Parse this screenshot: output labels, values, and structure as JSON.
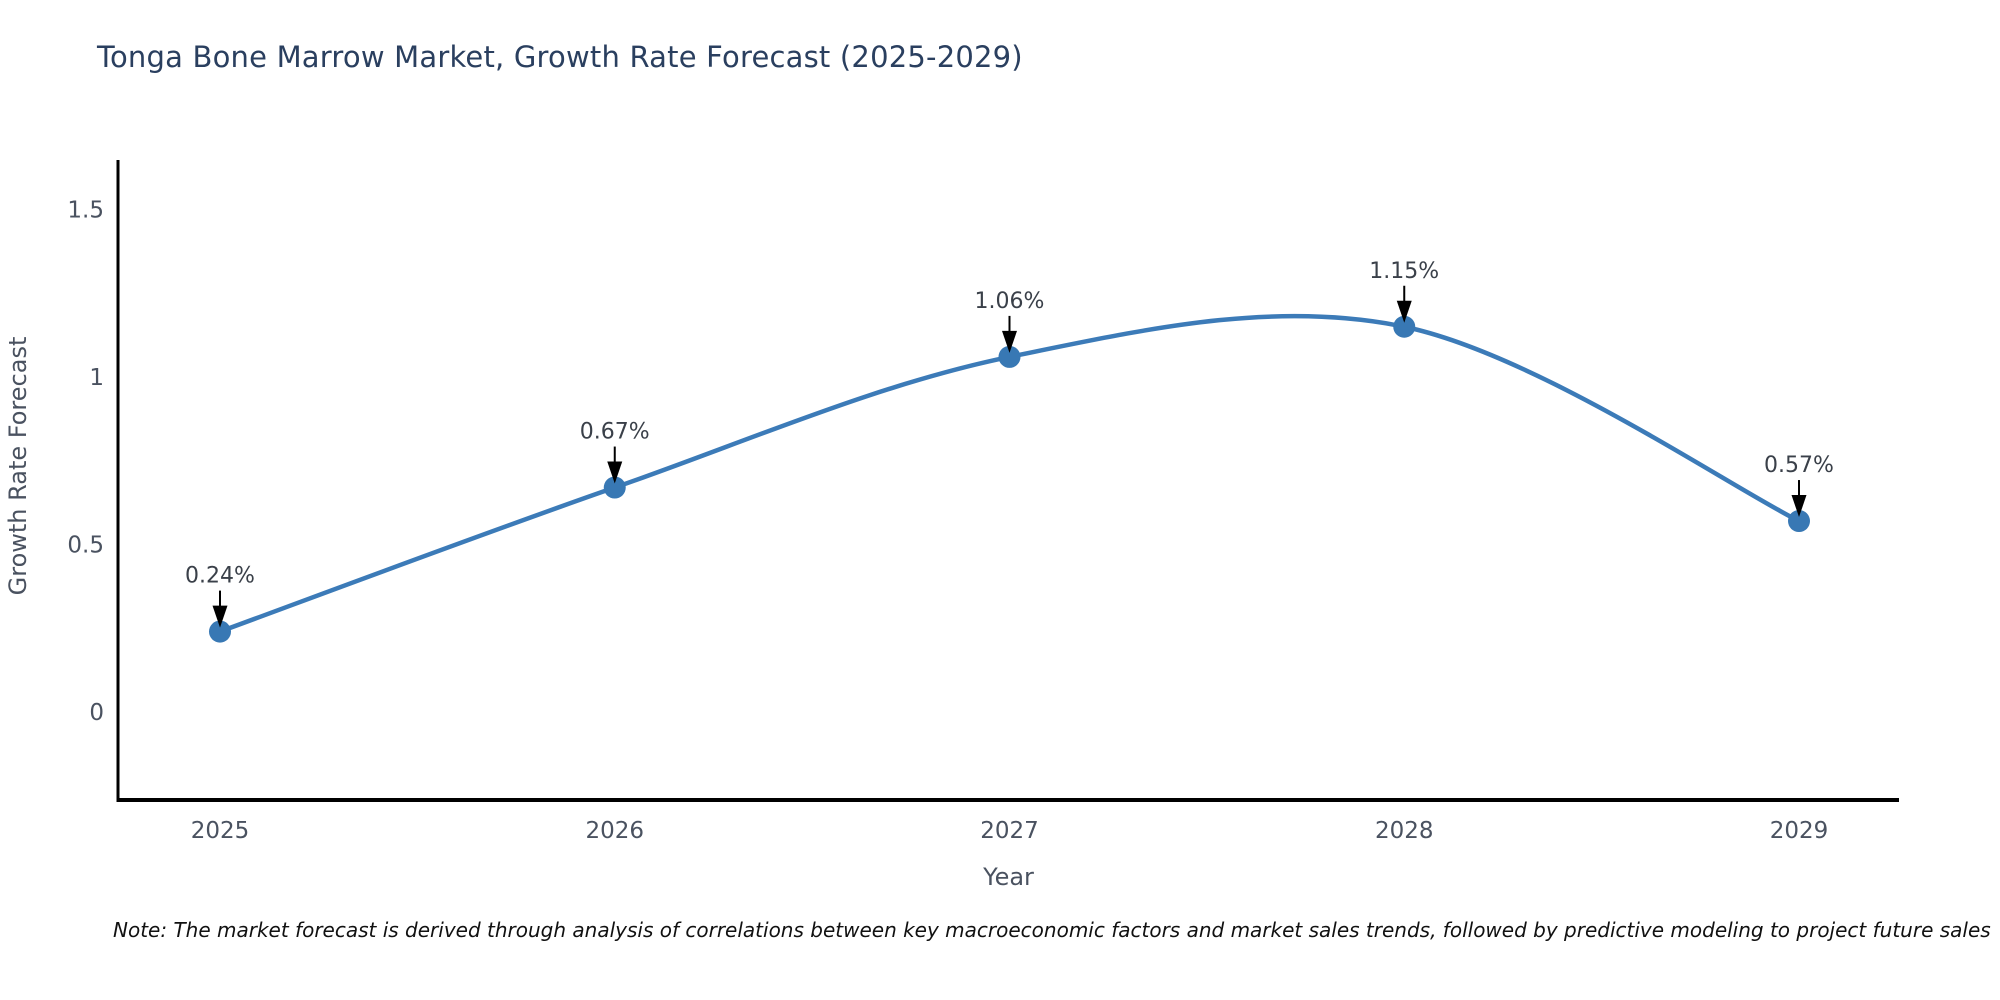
{
  "title": "Tonga Bone Marrow Market, Growth Rate Forecast (2025-2029)",
  "note": "Note: The market forecast is derived through analysis of correlations between key macroeconomic factors and market sales trends, followed by predictive modeling to project future sales",
  "chart_data": {
    "type": "line",
    "title": "Tonga Bone Marrow Market, Growth Rate Forecast (2025-2029)",
    "xlabel": "Year",
    "ylabel": "Growth Rate Forecast",
    "x": [
      2025,
      2026,
      2027,
      2028,
      2029
    ],
    "values": [
      0.24,
      0.67,
      1.06,
      1.15,
      0.57
    ],
    "point_labels": [
      "0.24%",
      "0.67%",
      "1.06%",
      "1.15%",
      "0.57%"
    ],
    "series_name": "Growth Rate Forecast",
    "line_shape": "spline",
    "yticks": [
      0,
      0.5,
      1,
      1.5
    ],
    "ylim": [
      -0.26,
      1.65
    ],
    "grid": false,
    "legend": "none",
    "colors": {
      "line": "#3c7bb8",
      "marker": "#3878b4",
      "axis": "#000000",
      "title": "#2a3f5f",
      "tick_label": "#4a5260",
      "annotation_text": "#3a4049",
      "annotation_arrow": "#000000",
      "note": "#111111",
      "background": "#ffffff"
    }
  }
}
